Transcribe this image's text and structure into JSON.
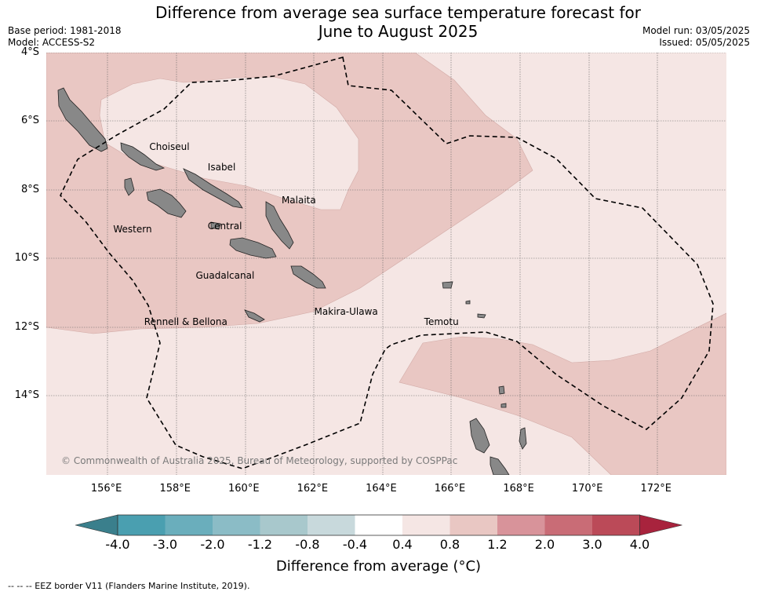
{
  "header": {
    "title_line1": "Difference from average sea surface temperature forecast for",
    "title_line2": "June to August 2025",
    "base_period": "Base period: 1981-2018",
    "model": "Model: ACCESS-S2",
    "model_run": "Model run: 03/05/2025",
    "issued": "Issued: 05/05/2025"
  },
  "axes": {
    "lat_labels": [
      "4°S",
      "6°S",
      "8°S",
      "10°S",
      "12°S",
      "14°S"
    ],
    "lon_labels": [
      "156°E",
      "158°E",
      "160°E",
      "162°E",
      "164°E",
      "166°E",
      "168°E",
      "170°E",
      "172°E"
    ],
    "lat_values": [
      -4,
      -6,
      -8,
      -10,
      -12,
      -14
    ],
    "lon_values": [
      156,
      158,
      160,
      162,
      164,
      166,
      168,
      170,
      172
    ],
    "lon_range": [
      154.25,
      174.05
    ],
    "lat_range": [
      -4.0,
      -16.3
    ],
    "grid": true
  },
  "places": [
    {
      "name": "Choiseul",
      "lon": 157.25,
      "lat": -6.75
    },
    {
      "name": "Isabel",
      "lon": 158.95,
      "lat": -7.33
    },
    {
      "name": "Malaita",
      "lon": 161.1,
      "lat": -8.3
    },
    {
      "name": "Western",
      "lon": 156.2,
      "lat": -9.15
    },
    {
      "name": "Central",
      "lon": 158.95,
      "lat": -9.05
    },
    {
      "name": "Guadalcanal",
      "lon": 158.6,
      "lat": -10.5
    },
    {
      "name": "Makira-Ulawa",
      "lon": 162.05,
      "lat": -11.55
    },
    {
      "name": "Rennell & Bellona",
      "lon": 157.1,
      "lat": -11.85
    },
    {
      "name": "Temotu",
      "lon": 165.25,
      "lat": -11.85
    }
  ],
  "copyright": "© Commonwealth of Australia 2025, Bureau of Meteorology, supported by COSPPac",
  "colorbar": {
    "label": "Difference from average (°C)",
    "ticks": [
      "-4.0",
      "-3.0",
      "-2.0",
      "-1.2",
      "-0.8",
      "-0.4",
      "0.4",
      "0.8",
      "1.2",
      "2.0",
      "3.0",
      "4.0"
    ],
    "colors": [
      "#4a9fb0",
      "#6aaebc",
      "#8bbcc6",
      "#a8c8cc",
      "#c8d9dc",
      "#ffffff",
      "#f5e6e4",
      "#e9c7c3",
      "#d8939a",
      "#c96c76",
      "#bb4a58"
    ],
    "under_color": "#3a7f8c",
    "over_color": "#a8233d"
  },
  "legend_colors": {
    "anomaly_0_4_to_0_8": "#f5e6e4",
    "anomaly_0_8_to_1_2": "#e9c7c3",
    "land": "#888888"
  },
  "footnote": "--  --  -- EEZ border V11 (Flanders Marine Institute, 2019)."
}
